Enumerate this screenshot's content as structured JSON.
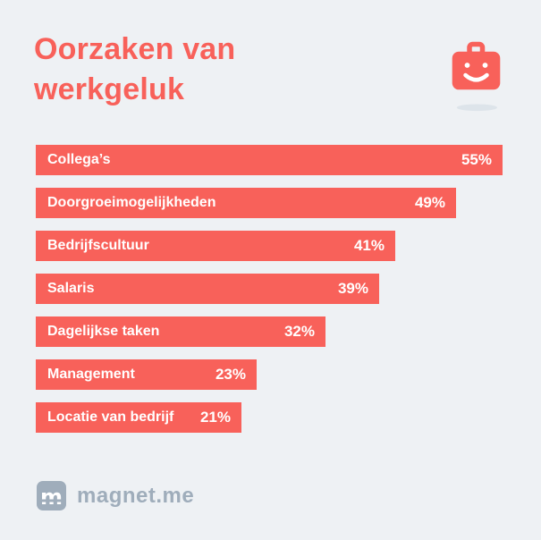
{
  "page": {
    "background_color": "#eef1f4"
  },
  "header": {
    "title": "Oorzaken van\nwerkgeluk",
    "title_color": "#f8615a",
    "icon": "happy-briefcase-icon"
  },
  "chart_data": {
    "type": "bar",
    "orientation": "horizontal",
    "title": "Oorzaken van werkgeluk",
    "categories": [
      "Collega’s",
      "Doorgroeimogelijkheden",
      "Bedrijfscultuur",
      "Salaris",
      "Dagelijkse taken",
      "Management",
      "Locatie van bedrijf"
    ],
    "values": [
      55,
      49,
      41,
      39,
      32,
      23,
      21
    ],
    "value_labels": [
      "55%",
      "49%",
      "41%",
      "39%",
      "32%",
      "23%",
      "21%"
    ],
    "xlim": [
      0,
      60
    ],
    "grid": false,
    "legend": false,
    "bar_color": "#f8615a",
    "bar_text_color": "#ffffff"
  },
  "footer": {
    "brand": "magnet.me",
    "brand_color": "#9fadbb",
    "logo": "magnet-me-logo-icon"
  }
}
